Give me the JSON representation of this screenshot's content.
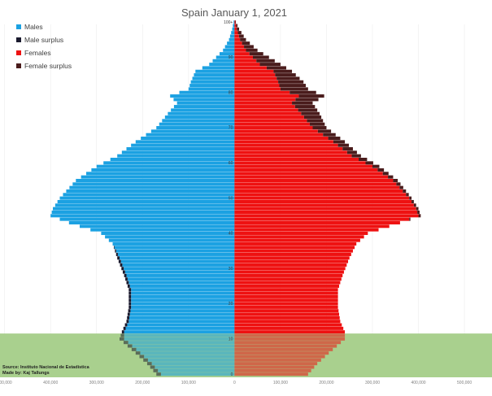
{
  "chart_data": {
    "type": "bar",
    "orientation": "horizontal",
    "title": "Spain January 1, 2021",
    "legend": [
      {
        "label": "Males",
        "color": "#1ba1e2"
      },
      {
        "label": "Male surplus",
        "color": "#1a1a2e"
      },
      {
        "label": "Females",
        "color": "#ee1111"
      },
      {
        "label": "Female surplus",
        "color": "#4a1c1c"
      }
    ],
    "legend_position": "top-left",
    "x_ticks": [
      "500,000",
      "400,000",
      "300,000",
      "200,000",
      "100,000",
      "0",
      "100,000",
      "200,000",
      "300,000",
      "400,000",
      "500,000"
    ],
    "x_tick_values": [
      -500000,
      -400000,
      -300000,
      -200000,
      -100000,
      0,
      100000,
      200000,
      300000,
      400000,
      500000
    ],
    "xlim": [
      -510000,
      560000
    ],
    "age_ticks": [
      "0",
      "10",
      "20",
      "30",
      "40",
      "50",
      "60",
      "70",
      "80",
      "90",
      "100+"
    ],
    "age_tick_values": [
      0,
      10,
      20,
      30,
      40,
      50,
      60,
      70,
      80,
      90,
      100
    ],
    "highlight_band": {
      "age_from": 0,
      "age_to": 11,
      "color": "#a9d08e"
    },
    "keypoints": {
      "ages": [
        0,
        3,
        6,
        10,
        12,
        15,
        19,
        24,
        28,
        33,
        37,
        40,
        43,
        45,
        47,
        50,
        55,
        59,
        62,
        66,
        70,
        74,
        77,
        79,
        81,
        83,
        86,
        88,
        90,
        92,
        95,
        98,
        100
      ],
      "males": [
        170000,
        190000,
        215000,
        250000,
        245000,
        235000,
        230000,
        230000,
        240000,
        255000,
        265000,
        290000,
        360000,
        400000,
        395000,
        380000,
        345000,
        300000,
        255000,
        215000,
        170000,
        145000,
        125000,
        140000,
        100000,
        95000,
        85000,
        55000,
        40000,
        25000,
        12000,
        5000,
        2000
      ],
      "females": [
        160000,
        180000,
        205000,
        240000,
        240000,
        230000,
        225000,
        225000,
        235000,
        250000,
        265000,
        290000,
        360000,
        405000,
        400000,
        385000,
        355000,
        315000,
        275000,
        240000,
        200000,
        185000,
        170000,
        195000,
        160000,
        150000,
        125000,
        100000,
        75000,
        50000,
        25000,
        10000,
        3000
      ]
    }
  },
  "notes": {
    "source": "Source: Instituto Nacional de Estadística",
    "made_by": "Made by: Kaj Tallungs"
  }
}
